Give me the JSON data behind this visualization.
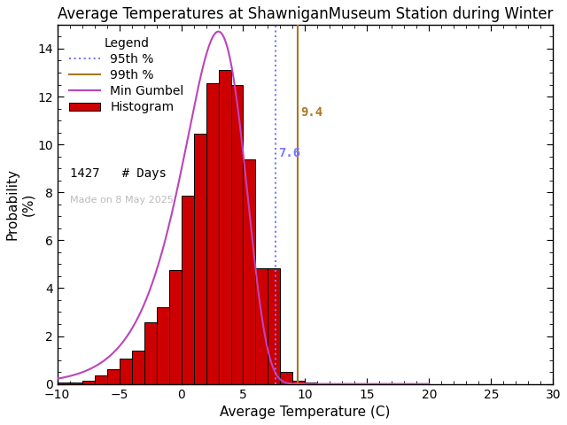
{
  "title": "Average Temperatures at ShawniganMuseum Station during Winter",
  "xlabel": "Average Temperature (C)",
  "ylabel": "Probability\n(%)",
  "xlim": [
    -10,
    30
  ],
  "ylim": [
    0,
    15
  ],
  "xticks": [
    -10,
    -5,
    0,
    5,
    10,
    15,
    20,
    25,
    30
  ],
  "yticks": [
    0,
    2,
    4,
    6,
    8,
    10,
    12,
    14
  ],
  "bar_color": "#cc0000",
  "bar_edge_color": "#000000",
  "gumbel_color": "#bb44bb",
  "pct95_color": "#7777ff",
  "pct99_color": "#aa7722",
  "pct95_value": 7.6,
  "pct99_value": 9.4,
  "n_days": 1427,
  "watermark": "Made on 8 May 2025",
  "background_color": "#ffffff",
  "bin_edges": [
    -10,
    -9,
    -8,
    -7,
    -6,
    -5,
    -4,
    -3,
    -2,
    -1,
    0,
    1,
    2,
    3,
    4,
    5,
    6,
    7,
    8,
    9,
    10,
    11,
    12,
    13,
    14,
    15,
    16,
    17,
    18,
    19,
    20
  ],
  "bin_heights": [
    0.07,
    0.07,
    0.14,
    0.35,
    0.63,
    1.05,
    1.4,
    2.59,
    3.22,
    4.76,
    7.85,
    10.44,
    12.54,
    13.1,
    12.47,
    9.37,
    4.83,
    4.83,
    0.49,
    0.14,
    0.07,
    0.0,
    0.0,
    0.0,
    0.0,
    0.0,
    0.0,
    0.0,
    0.0,
    0.0
  ],
  "gumbel_mu": 3.0,
  "gumbel_beta": 2.5,
  "title_fontsize": 12,
  "axis_fontsize": 11,
  "tick_fontsize": 10,
  "legend_fontsize": 10
}
